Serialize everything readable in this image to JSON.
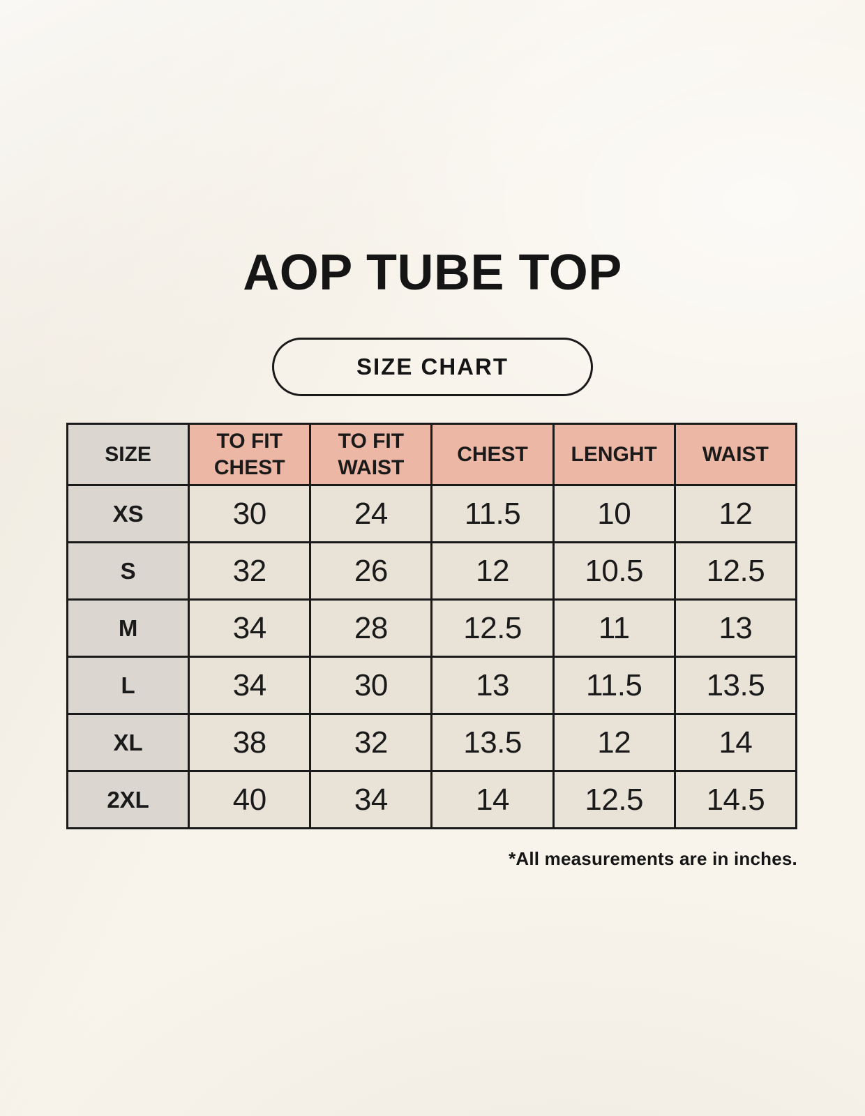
{
  "header": {
    "title": "AOP TUBE TOP",
    "badge_label": "SIZE CHART"
  },
  "chart_data": {
    "type": "table",
    "title": "AOP TUBE TOP",
    "subtitle": "SIZE CHART",
    "columns": [
      "SIZE",
      "TO FIT CHEST",
      "TO FIT WAIST",
      "CHEST",
      "LENGHT",
      "WAIST"
    ],
    "rows": [
      [
        "XS",
        "30",
        "24",
        "11.5",
        "10",
        "12"
      ],
      [
        "S",
        "32",
        "26",
        "12",
        "10.5",
        "12.5"
      ],
      [
        "M",
        "34",
        "28",
        "12.5",
        "11",
        "13"
      ],
      [
        "L",
        "34",
        "30",
        "13",
        "11.5",
        "13.5"
      ],
      [
        "XL",
        "38",
        "32",
        "13.5",
        "12",
        "14"
      ],
      [
        "2XL",
        "40",
        "34",
        "14",
        "12.5",
        "14.5"
      ]
    ],
    "note": "*All measurements are in inches.",
    "units": "inches"
  },
  "colors": {
    "background": "#f8f4ec",
    "header_pink": "#edb7a5",
    "size_column_gray": "#dcd6d1",
    "cell_cream": "#e9e2d7",
    "border_black": "#1a1a1a",
    "text": "#151515"
  }
}
